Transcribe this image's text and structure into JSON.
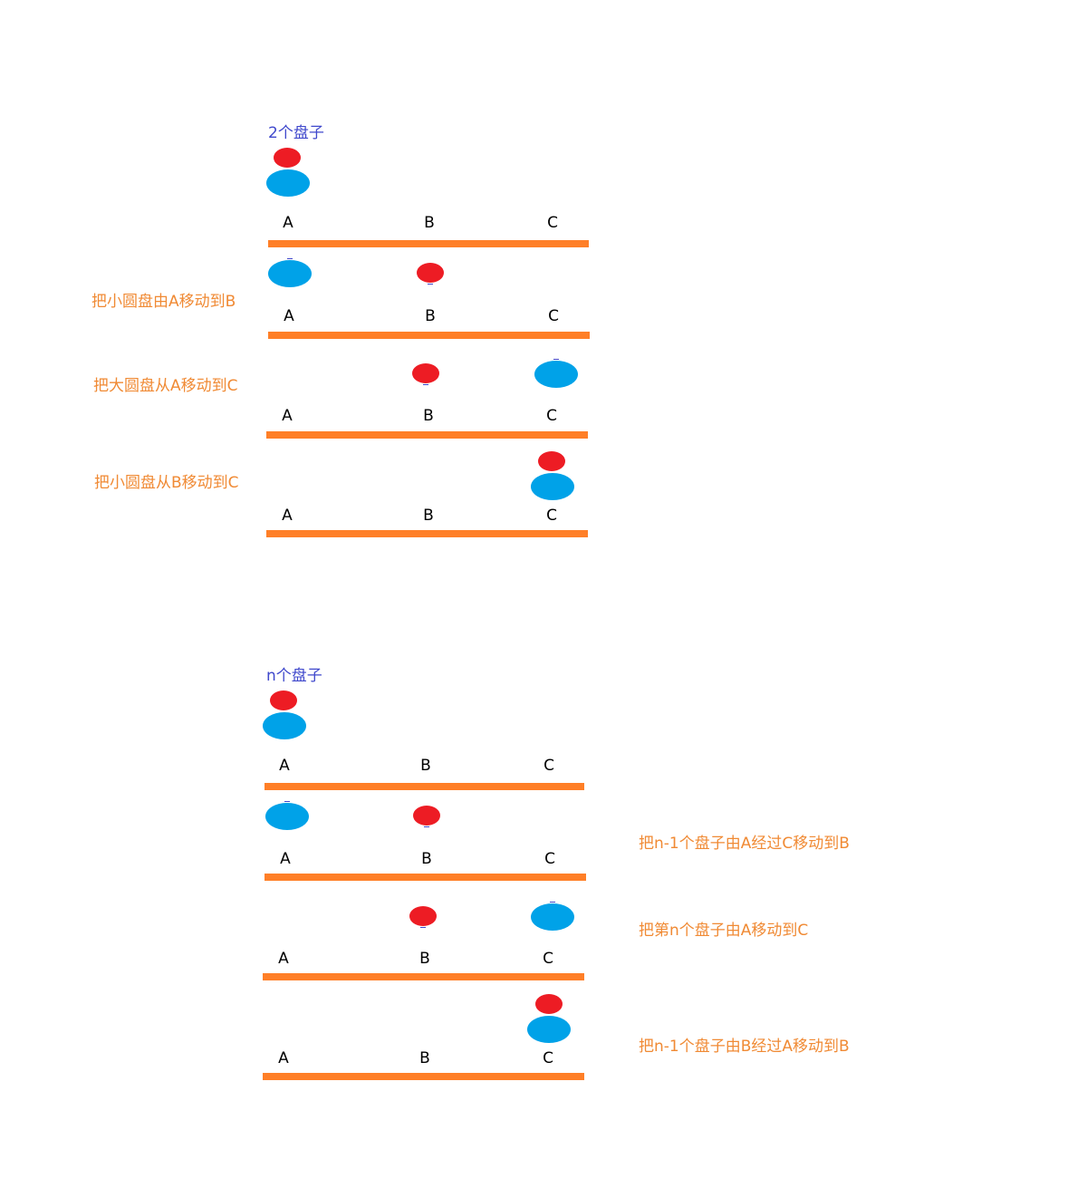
{
  "section_2": {
    "title": "2个盘子",
    "steps": [
      "把小圆盘由A移动到B",
      "把大圆盘从A移动到C",
      "把小圆盘从B移动到C"
    ]
  },
  "section_n": {
    "title": "n个盘子",
    "steps": [
      "把n-1个盘子由A经过C移动到B",
      "把第n个盘子由A移动到C",
      "把n-1个盘子由B经过A移动到B"
    ]
  },
  "pegs": [
    "A",
    "B",
    "C"
  ],
  "colors": {
    "bar": "#ff7f27",
    "small_disk": "#ed1c24",
    "large_disk": "#00a2e8",
    "title": "#3f48cc",
    "step_text": "#f08a34"
  }
}
